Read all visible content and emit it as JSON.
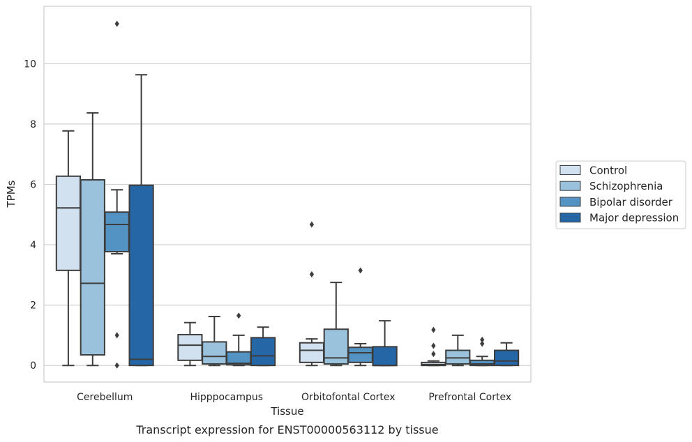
{
  "caption": "Transcript expression for ENST00000563112 by tissue",
  "chart_data": {
    "type": "box",
    "xlabel": "Tissue",
    "ylabel": "TPMs",
    "ylim": [
      -0.55,
      11.9
    ],
    "yticks": [
      0,
      2,
      4,
      6,
      8,
      10
    ],
    "grid": "horizontal",
    "legend_position": "right",
    "categories": [
      "Cerebellum",
      "Hipppocampus",
      "Orbitofontal Cortex",
      "Prefrontal Cortex"
    ],
    "series": [
      {
        "name": "Control",
        "color": "#d1e1f0",
        "boxes": [
          {
            "whisker_low": 0.0,
            "q1": 3.15,
            "median": 5.22,
            "q3": 6.27,
            "whisker_high": 7.77,
            "outliers": []
          },
          {
            "whisker_low": 0.0,
            "q1": 0.17,
            "median": 0.67,
            "q3": 1.02,
            "whisker_high": 1.42,
            "outliers": []
          },
          {
            "whisker_low": 0.0,
            "q1": 0.1,
            "median": 0.5,
            "q3": 0.75,
            "whisker_high": 0.88,
            "outliers": [
              3.02,
              4.67
            ]
          },
          {
            "whisker_low": 0.0,
            "q1": 0.0,
            "median": 0.03,
            "q3": 0.1,
            "whisker_high": 0.15,
            "outliers": [
              0.38,
              0.65,
              1.18
            ]
          }
        ]
      },
      {
        "name": "Schizophrenia",
        "color": "#9bc2dc",
        "boxes": [
          {
            "whisker_low": 0.0,
            "q1": 0.35,
            "median": 2.72,
            "q3": 6.15,
            "whisker_high": 8.37,
            "outliers": []
          },
          {
            "whisker_low": 0.0,
            "q1": 0.05,
            "median": 0.3,
            "q3": 0.78,
            "whisker_high": 1.62,
            "outliers": []
          },
          {
            "whisker_low": 0.0,
            "q1": 0.05,
            "median": 0.25,
            "q3": 1.2,
            "whisker_high": 2.75,
            "outliers": []
          },
          {
            "whisker_low": 0.0,
            "q1": 0.05,
            "median": 0.25,
            "q3": 0.5,
            "whisker_high": 1.0,
            "outliers": []
          }
        ]
      },
      {
        "name": "Bipolar disorder",
        "color": "#5393c3",
        "boxes": [
          {
            "whisker_low": 3.7,
            "q1": 3.77,
            "median": 4.67,
            "q3": 5.08,
            "whisker_high": 5.82,
            "outliers": [
              0.0,
              1.0,
              11.32
            ]
          },
          {
            "whisker_low": 0.0,
            "q1": 0.02,
            "median": 0.07,
            "q3": 0.45,
            "whisker_high": 1.0,
            "outliers": [
              1.65
            ]
          },
          {
            "whisker_low": 0.0,
            "q1": 0.1,
            "median": 0.42,
            "q3": 0.6,
            "whisker_high": 0.72,
            "outliers": [
              3.15
            ]
          },
          {
            "whisker_low": 0.0,
            "q1": 0.0,
            "median": 0.05,
            "q3": 0.17,
            "whisker_high": 0.3,
            "outliers": [
              0.72,
              0.85
            ]
          }
        ]
      },
      {
        "name": "Major depression",
        "color": "#2466a6",
        "boxes": [
          {
            "whisker_low": 0.0,
            "q1": 0.0,
            "median": 0.2,
            "q3": 5.97,
            "whisker_high": 9.63,
            "outliers": []
          },
          {
            "whisker_low": 0.0,
            "q1": 0.0,
            "median": 0.32,
            "q3": 0.92,
            "whisker_high": 1.27,
            "outliers": []
          },
          {
            "whisker_low": 0.0,
            "q1": 0.0,
            "median": 0.0,
            "q3": 0.62,
            "whisker_high": 1.48,
            "outliers": []
          },
          {
            "whisker_low": 0.0,
            "q1": 0.0,
            "median": 0.15,
            "q3": 0.5,
            "whisker_high": 0.75,
            "outliers": []
          }
        ]
      }
    ]
  }
}
